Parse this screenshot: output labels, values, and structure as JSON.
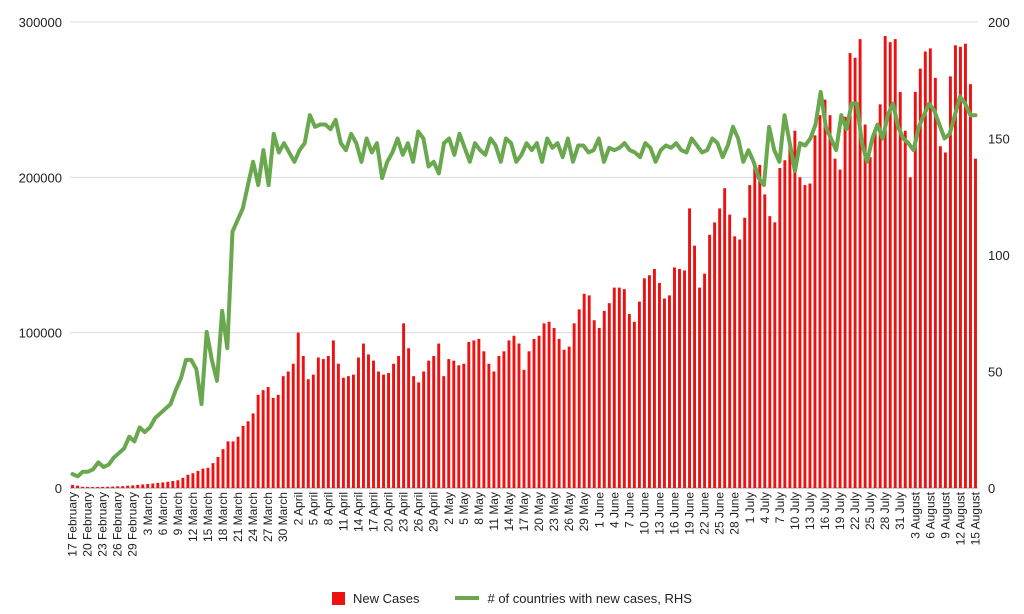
{
  "chart_data": {
    "type": "bar+line",
    "title": "",
    "y_left": {
      "min": 0,
      "max": 300000,
      "ticks": [
        0,
        100000,
        200000,
        300000
      ]
    },
    "y_right": {
      "min": 0,
      "max": 200,
      "ticks": [
        0,
        50,
        100,
        150,
        200
      ]
    },
    "x_tick_labels": [
      "17 February",
      "20 February",
      "23 February",
      "26 February",
      "29 February",
      "3 March",
      "6 March",
      "9 March",
      "12 March",
      "15 March",
      "18 March",
      "21 March",
      "24 March",
      "27 March",
      "30 March",
      "2 April",
      "5 April",
      "8 April",
      "11 April",
      "14 April",
      "17 April",
      "20 April",
      "23 April",
      "26 April",
      "29 April",
      "2 May",
      "5 May",
      "8 May",
      "11 May",
      "14 May",
      "17 May",
      "20 May",
      "23 May",
      "26 May",
      "29 May",
      "1 June",
      "4 June",
      "7 June",
      "10 June",
      "13 June",
      "16 June",
      "19 June",
      "22 June",
      "25 June",
      "28 June",
      "1 July",
      "4 July",
      "7 July",
      "10 July",
      "13 July",
      "16 July",
      "19 July",
      "22 July",
      "25 July",
      "28 July",
      "31 July",
      "3 August",
      "6 August",
      "9 August",
      "12 August",
      "15 August"
    ],
    "tick_every": 3,
    "grid": true,
    "legend_position": "bottom",
    "series": [
      {
        "name": "New Cases",
        "axis": "left",
        "kind": "bar",
        "color": "#ee1111",
        "values": [
          2000,
          1500,
          800,
          700,
          600,
          650,
          700,
          800,
          900,
          1100,
          1200,
          1500,
          1700,
          2000,
          2300,
          2600,
          2900,
          3300,
          3600,
          4000,
          4500,
          5000,
          6500,
          8500,
          9500,
          11000,
          12500,
          13000,
          16000,
          20000,
          25000,
          30000,
          30000,
          33000,
          40000,
          43000,
          48000,
          60000,
          63000,
          65000,
          58000,
          60000,
          72000,
          75000,
          80000,
          100000,
          85000,
          70000,
          73000,
          84000,
          83000,
          85000,
          95000,
          80000,
          71000,
          72000,
          73000,
          84000,
          93000,
          86000,
          82000,
          75000,
          73000,
          74000,
          80000,
          85000,
          106000,
          90000,
          72000,
          68000,
          75000,
          82000,
          85000,
          93000,
          72000,
          83000,
          82000,
          79000,
          80000,
          94000,
          95000,
          96000,
          88000,
          80000,
          75000,
          85000,
          88000,
          95000,
          98000,
          93000,
          76000,
          88000,
          96000,
          98000,
          106000,
          107000,
          103000,
          96000,
          89000,
          91000,
          106000,
          115000,
          125000,
          124000,
          108000,
          103000,
          114000,
          119000,
          129000,
          129000,
          128000,
          112000,
          107000,
          120000,
          135000,
          137000,
          141000,
          132000,
          122000,
          124000,
          142000,
          141000,
          140000,
          180000,
          156000,
          129000,
          138000,
          163000,
          171000,
          180000,
          193000,
          176000,
          162000,
          160000,
          174000,
          195000,
          209000,
          208000,
          189000,
          175000,
          171000,
          206000,
          211000,
          220000,
          230000,
          200000,
          195000,
          196000,
          227000,
          240000,
          250000,
          240000,
          212000,
          205000,
          239000,
          280000,
          277000,
          289000,
          234000,
          213000,
          230000,
          247000,
          291000,
          287000,
          289000,
          255000,
          230000,
          200000,
          255000,
          270000,
          281000,
          283000,
          264000,
          220000,
          216000,
          265000,
          285000,
          284000,
          286000,
          260000,
          212000
        ]
      },
      {
        "name": "# of countries with new cases, RHS",
        "axis": "right",
        "kind": "line",
        "color": "#6aa84f",
        "values": [
          6,
          5,
          7,
          7,
          8,
          11,
          9,
          10,
          13,
          15,
          17,
          22,
          20,
          26,
          24,
          26,
          30,
          32,
          34,
          36,
          42,
          47,
          55,
          55,
          51,
          36,
          67,
          55,
          46,
          76,
          60,
          110,
          115,
          120,
          130,
          140,
          130,
          145,
          130,
          152,
          144,
          148,
          144,
          140,
          145,
          148,
          160,
          155,
          156,
          156,
          154,
          158,
          148,
          145,
          152,
          148,
          140,
          150,
          144,
          148,
          133,
          140,
          144,
          150,
          143,
          148,
          140,
          153,
          150,
          138,
          140,
          135,
          148,
          150,
          143,
          152,
          146,
          140,
          148,
          145,
          143,
          150,
          147,
          140,
          150,
          148,
          140,
          143,
          148,
          145,
          148,
          140,
          150,
          146,
          148,
          142,
          150,
          140,
          147,
          147,
          144,
          145,
          150,
          140,
          146,
          145,
          146,
          148,
          145,
          144,
          142,
          148,
          146,
          140,
          145,
          147,
          146,
          148,
          145,
          144,
          150,
          147,
          144,
          145,
          150,
          148,
          142,
          147,
          155,
          150,
          140,
          145,
          140,
          133,
          130,
          155,
          145,
          140,
          160,
          148,
          136,
          148,
          147,
          150,
          156,
          170,
          155,
          150,
          145,
          160,
          154,
          165,
          165,
          148,
          140,
          150,
          156,
          150,
          160,
          165,
          155,
          150,
          148,
          145,
          155,
          160,
          165,
          162,
          156,
          150,
          152,
          160,
          168,
          165,
          160,
          160
        ]
      }
    ]
  },
  "legend": {
    "items": [
      {
        "label": "New Cases",
        "color": "#ee1111"
      },
      {
        "label": "# of countries with new cases, RHS",
        "color": "#6aa84f"
      }
    ]
  }
}
